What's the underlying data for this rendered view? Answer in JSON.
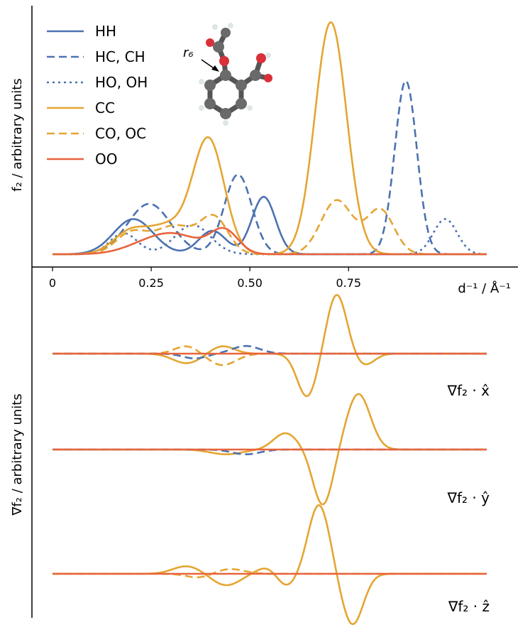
{
  "chart_data": {
    "type": "line",
    "xlabel": "d⁻¹ / Å⁻¹",
    "xlim": [
      -0.05,
      1.15
    ],
    "xticks": [
      "0",
      "0.25",
      "0.50",
      "0.75"
    ],
    "xtick_values": [
      0,
      0.25,
      0.5,
      0.75
    ],
    "x_range": [
      0,
      1.1
    ],
    "top_panel": {
      "ylabel": "f₂ / arbitrary units",
      "ylim": [
        0,
        1
      ],
      "series": [
        {
          "name": "HH",
          "color": "#4c72b0",
          "dash": "solid",
          "peaks": [
            {
              "center": 0.205,
              "height": 0.15,
              "width": 0.05
            },
            {
              "center": 0.405,
              "height": 0.1,
              "width": 0.035
            },
            {
              "center": 0.535,
              "height": 0.245,
              "width": 0.03
            }
          ]
        },
        {
          "name": "HC, CH",
          "color": "#4c72b0",
          "dash": "dashed",
          "peaks": [
            {
              "center": 0.245,
              "height": 0.215,
              "width": 0.055
            },
            {
              "center": 0.47,
              "height": 0.34,
              "width": 0.035
            },
            {
              "center": 0.895,
              "height": 0.74,
              "width": 0.028
            }
          ]
        },
        {
          "name": "HO, OH",
          "color": "#4c72b0",
          "dash": "dotted",
          "peaks": [
            {
              "center": 0.18,
              "height": 0.09,
              "width": 0.035
            },
            {
              "center": 0.355,
              "height": 0.125,
              "width": 0.045
            },
            {
              "center": 0.995,
              "height": 0.15,
              "width": 0.03
            }
          ]
        },
        {
          "name": "CC",
          "color": "#e5a532",
          "dash": "solid",
          "peaks": [
            {
              "center": 0.2,
              "height": 0.1,
              "width": 0.045
            },
            {
              "center": 0.295,
              "height": 0.11,
              "width": 0.045
            },
            {
              "center": 0.395,
              "height": 0.49,
              "width": 0.04
            },
            {
              "center": 0.705,
              "height": 0.99,
              "width": 0.04
            }
          ]
        },
        {
          "name": "CO, OC",
          "color": "#e5a532",
          "dash": "dashed",
          "peaks": [
            {
              "center": 0.2,
              "height": 0.09,
              "width": 0.04
            },
            {
              "center": 0.31,
              "height": 0.12,
              "width": 0.05
            },
            {
              "center": 0.41,
              "height": 0.15,
              "width": 0.035
            },
            {
              "center": 0.72,
              "height": 0.23,
              "width": 0.04
            },
            {
              "center": 0.83,
              "height": 0.19,
              "width": 0.035
            }
          ]
        },
        {
          "name": "OO",
          "color": "#e8643c",
          "dash": "solid",
          "peaks": [
            {
              "center": 0.24,
              "height": 0.04,
              "width": 0.06
            },
            {
              "center": 0.32,
              "height": 0.07,
              "width": 0.06
            },
            {
              "center": 0.435,
              "height": 0.1,
              "width": 0.035
            }
          ]
        }
      ]
    },
    "bottom_panels": {
      "ylabel": "∇f₂ / arbitrary units",
      "panels": [
        {
          "label": "∇f₂ · x̂",
          "series": [
            {
              "name": "CC",
              "color": "#e5a532",
              "dash": "solid",
              "peaks": [
                {
                  "center": 0.34,
                  "height": -0.1,
                  "width": 0.035
                },
                {
                  "center": 0.43,
                  "height": 0.08,
                  "width": 0.03
                },
                {
                  "center": 0.645,
                  "height": -0.45,
                  "width": 0.025
                },
                {
                  "center": 0.72,
                  "height": 0.62,
                  "width": 0.025
                },
                {
                  "center": 0.79,
                  "height": -0.12,
                  "width": 0.025
                }
              ]
            },
            {
              "name": "CO, OC",
              "color": "#e5a532",
              "dash": "dashed",
              "peaks": [
                {
                  "center": 0.34,
                  "height": 0.08,
                  "width": 0.03
                },
                {
                  "center": 0.43,
                  "height": -0.12,
                  "width": 0.035
                }
              ]
            },
            {
              "name": "HC, CH",
              "color": "#4c72b0",
              "dash": "dashed",
              "peaks": [
                {
                  "center": 0.36,
                  "height": -0.05,
                  "width": 0.03
                },
                {
                  "center": 0.49,
                  "height": 0.08,
                  "width": 0.035
                }
              ]
            },
            {
              "name": "OO",
              "color": "#e8643c",
              "dash": "solid",
              "peaks": []
            }
          ]
        },
        {
          "label": "∇f₂ · ŷ",
          "series": [
            {
              "name": "CC",
              "color": "#e5a532",
              "dash": "solid",
              "peaks": [
                {
                  "center": 0.44,
                  "height": -0.05,
                  "width": 0.04
                },
                {
                  "center": 0.59,
                  "height": 0.17,
                  "width": 0.03
                },
                {
                  "center": 0.685,
                  "height": -0.58,
                  "width": 0.025
                },
                {
                  "center": 0.775,
                  "height": 0.58,
                  "width": 0.03
                }
              ]
            },
            {
              "name": "HC, CH",
              "color": "#4c72b0",
              "dash": "dashed",
              "peaks": [
                {
                  "center": 0.49,
                  "height": -0.05,
                  "width": 0.035
                }
              ]
            },
            {
              "name": "OO",
              "color": "#e8643c",
              "dash": "solid",
              "peaks": []
            }
          ]
        },
        {
          "label": "∇f₂ · ẑ",
          "series": [
            {
              "name": "CC",
              "color": "#e5a532",
              "dash": "solid",
              "peaks": [
                {
                  "center": 0.34,
                  "height": 0.08,
                  "width": 0.035
                },
                {
                  "center": 0.44,
                  "height": -0.12,
                  "width": 0.035
                },
                {
                  "center": 0.55,
                  "height": 0.08,
                  "width": 0.03
                },
                {
                  "center": 0.59,
                  "height": -0.15,
                  "width": 0.025
                },
                {
                  "center": 0.675,
                  "height": 0.72,
                  "width": 0.027
                },
                {
                  "center": 0.76,
                  "height": -0.53,
                  "width": 0.027
                }
              ]
            },
            {
              "name": "CO, OC",
              "color": "#e5a532",
              "dash": "dashed",
              "peaks": [
                {
                  "center": 0.45,
                  "height": 0.05,
                  "width": 0.035
                },
                {
                  "center": 0.37,
                  "height": -0.04,
                  "width": 0.03
                }
              ]
            },
            {
              "name": "OO",
              "color": "#e8643c",
              "dash": "solid",
              "peaks": []
            }
          ]
        }
      ]
    },
    "inset": {
      "annotation": "r₆",
      "description": "molecular ball-and-stick model"
    }
  }
}
